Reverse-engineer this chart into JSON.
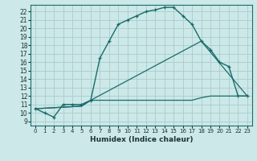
{
  "title": "",
  "xlabel": "Humidex (Indice chaleur)",
  "bg_color": "#cce8e8",
  "grid_color": "#aacccc",
  "line_color": "#1a6b6b",
  "xlim": [
    -0.5,
    23.5
  ],
  "ylim": [
    8.5,
    22.8
  ],
  "xticks": [
    0,
    1,
    2,
    3,
    4,
    5,
    6,
    7,
    8,
    9,
    10,
    11,
    12,
    13,
    14,
    15,
    16,
    17,
    18,
    19,
    20,
    21,
    22,
    23
  ],
  "yticks": [
    9,
    10,
    11,
    12,
    13,
    14,
    15,
    16,
    17,
    18,
    19,
    20,
    21,
    22
  ],
  "line1_x": [
    0,
    1,
    2,
    3,
    4,
    5,
    6,
    7,
    8,
    9,
    10,
    11,
    12,
    13,
    14,
    15,
    16,
    17,
    18,
    19,
    20,
    21,
    22,
    23
  ],
  "line1_y": [
    10.5,
    10.0,
    9.5,
    11.0,
    11.0,
    11.0,
    11.5,
    16.5,
    18.5,
    20.5,
    21.0,
    21.5,
    22.0,
    22.2,
    22.5,
    22.5,
    21.5,
    20.5,
    18.5,
    17.5,
    16.0,
    15.5,
    12.0,
    12.0
  ],
  "line2_x": [
    0,
    5,
    6,
    18,
    23
  ],
  "line2_y": [
    10.5,
    10.8,
    11.5,
    18.5,
    12.0
  ],
  "line3_x": [
    0,
    5,
    6,
    7,
    8,
    9,
    10,
    11,
    12,
    13,
    14,
    15,
    16,
    17,
    18,
    19,
    20,
    21,
    22,
    23
  ],
  "line3_y": [
    10.5,
    10.8,
    11.5,
    11.5,
    11.5,
    11.5,
    11.5,
    11.5,
    11.5,
    11.5,
    11.5,
    11.5,
    11.5,
    11.5,
    11.8,
    12.0,
    12.0,
    12.0,
    12.0,
    12.0
  ]
}
